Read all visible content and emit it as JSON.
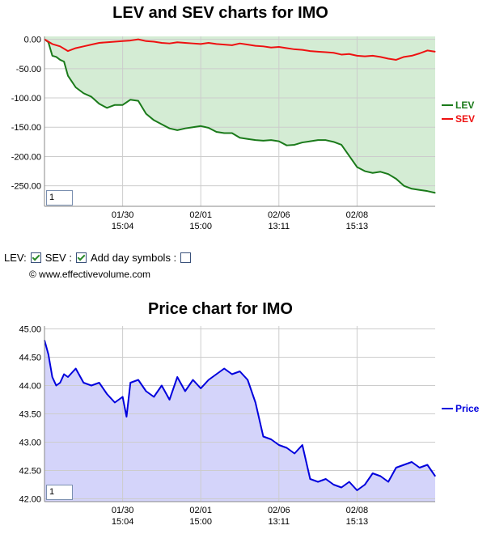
{
  "top_chart": {
    "title": "LEV and SEV charts for IMO",
    "zoom_value": "1"
  },
  "price_chart": {
    "title": "Price chart for IMO",
    "zoom_value": "1"
  },
  "controls": {
    "lev_label": "LEV:",
    "lev_checked": true,
    "sev_label": "SEV :",
    "sev_checked": true,
    "day_symbols_label": "Add day symbols :",
    "day_symbols_checked": false
  },
  "copyright": "© www.effectivevolume.com",
  "colors": {
    "lev": "#1a7a1a",
    "sev": "#ee1111",
    "price": "#0000dd",
    "lev_fill": "#d4ecd4",
    "sev_fill": "#d9bfb2",
    "price_fill": "#d4d4fa"
  },
  "chart_data": [
    {
      "type": "line",
      "title": "LEV and SEV charts for IMO",
      "x_ticks": [
        {
          "date": "01/30",
          "time": "15:04"
        },
        {
          "date": "02/01",
          "time": "15:00"
        },
        {
          "date": "02/06",
          "time": "13:11"
        },
        {
          "date": "02/08",
          "time": "15:13"
        }
      ],
      "y_ticks": [
        "0.00",
        "-50.00",
        "-100.00",
        "-150.00",
        "-200.00",
        "-250.00"
      ],
      "ylim": [
        -285,
        5
      ],
      "grid": true,
      "legend_position": "right",
      "series": [
        {
          "name": "LEV",
          "color": "#1a7a1a",
          "x": [
            0,
            1,
            2,
            3,
            4,
            5,
            6,
            8,
            10,
            12,
            14,
            16,
            18,
            20,
            22,
            24,
            26,
            28,
            30,
            32,
            34,
            36,
            38,
            40,
            42,
            44,
            46,
            48,
            50,
            52,
            54,
            56,
            58,
            60,
            62,
            64,
            66,
            68,
            70,
            72,
            74,
            76,
            78,
            80,
            82,
            84,
            86,
            88,
            90,
            92,
            94,
            96,
            98,
            100
          ],
          "y": [
            0,
            -5,
            -28,
            -30,
            -35,
            -38,
            -62,
            -82,
            -92,
            -98,
            -110,
            -117,
            -112,
            -112,
            -103,
            -105,
            -127,
            -138,
            -145,
            -152,
            -155,
            -152,
            -150,
            -148,
            -151,
            -158,
            -160,
            -160,
            -168,
            -170,
            -172,
            -173,
            -172,
            -174,
            -181,
            -180,
            -176,
            -174,
            -172,
            -172,
            -175,
            -180,
            -199,
            -218,
            -225,
            -228,
            -226,
            -230,
            -238,
            -250,
            -255,
            -257,
            -259,
            -262
          ]
        },
        {
          "name": "SEV",
          "color": "#ee1111",
          "x": [
            0,
            2,
            4,
            6,
            8,
            10,
            12,
            14,
            16,
            18,
            20,
            22,
            24,
            26,
            28,
            30,
            32,
            34,
            36,
            38,
            40,
            42,
            44,
            46,
            48,
            50,
            52,
            54,
            56,
            58,
            60,
            62,
            64,
            66,
            68,
            70,
            72,
            74,
            76,
            78,
            80,
            82,
            84,
            86,
            88,
            90,
            92,
            94,
            96,
            98,
            100
          ],
          "y": [
            0,
            -8,
            -12,
            -20,
            -15,
            -12,
            -9,
            -6,
            -5,
            -4,
            -3,
            -2,
            0,
            -3,
            -4,
            -6,
            -7,
            -5,
            -6,
            -7,
            -8,
            -6,
            -8,
            -9,
            -10,
            -7,
            -9,
            -11,
            -12,
            -14,
            -13,
            -15,
            -17,
            -18,
            -20,
            -21,
            -22,
            -23,
            -26,
            -25,
            -28,
            -29,
            -28,
            -30,
            -33,
            -35,
            -30,
            -28,
            -24,
            -19,
            -21
          ]
        }
      ]
    },
    {
      "type": "line",
      "title": "Price chart for IMO",
      "x_ticks": [
        {
          "date": "01/30",
          "time": "15:04"
        },
        {
          "date": "02/01",
          "time": "15:00"
        },
        {
          "date": "02/06",
          "time": "13:11"
        },
        {
          "date": "02/08",
          "time": "15:13"
        }
      ],
      "y_ticks": [
        "45.00",
        "44.50",
        "44.00",
        "43.50",
        "43.00",
        "42.50",
        "42.00"
      ],
      "ylim": [
        41.95,
        45.05
      ],
      "grid": true,
      "legend_position": "right",
      "series": [
        {
          "name": "Price",
          "color": "#0000dd",
          "x": [
            0,
            1,
            2,
            3,
            4,
            5,
            6,
            8,
            10,
            12,
            14,
            16,
            18,
            20,
            21,
            22,
            24,
            26,
            28,
            30,
            32,
            34,
            36,
            38,
            40,
            42,
            44,
            46,
            48,
            50,
            52,
            54,
            56,
            58,
            60,
            62,
            64,
            66,
            68,
            70,
            72,
            74,
            76,
            78,
            80,
            82,
            84,
            86,
            88,
            90,
            92,
            94,
            96,
            98,
            100
          ],
          "y": [
            44.8,
            44.55,
            44.15,
            44.0,
            44.05,
            44.2,
            44.15,
            44.3,
            44.05,
            44.0,
            44.05,
            43.85,
            43.7,
            43.8,
            43.45,
            44.05,
            44.1,
            43.9,
            43.8,
            44.0,
            43.75,
            44.15,
            43.9,
            44.1,
            43.95,
            44.1,
            44.2,
            44.3,
            44.2,
            44.25,
            44.1,
            43.7,
            43.1,
            43.05,
            42.95,
            42.9,
            42.8,
            42.95,
            42.35,
            42.3,
            42.35,
            42.25,
            42.2,
            42.3,
            42.15,
            42.25,
            42.45,
            42.4,
            42.3,
            42.55,
            42.6,
            42.65,
            42.55,
            42.6,
            42.4
          ]
        }
      ]
    }
  ]
}
